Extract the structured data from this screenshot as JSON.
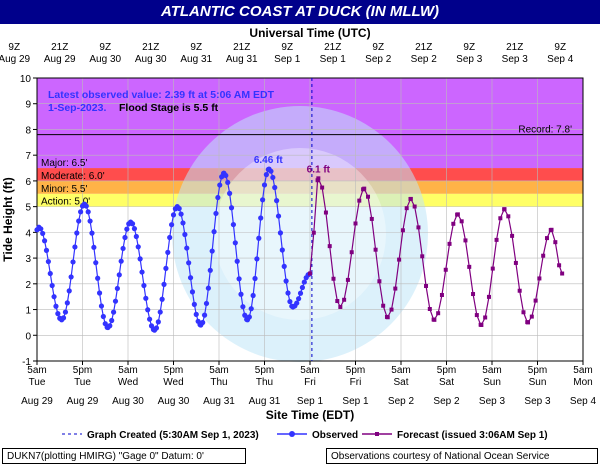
{
  "title": "ATLANTIC COAST AT DUCK (IN MLLW)",
  "footer": {
    "left": "DUKN7(plotting HMIRG) \"Gage 0\" Datum: 0'",
    "right": "Observations courtesy of National Ocean Service"
  },
  "colors": {
    "title_bg": "#00008b",
    "record_band": "#e680e6",
    "major_band": "#cc66ff",
    "moderate_band": "#ff4d4d",
    "minor_band": "#ffb347",
    "action_band": "#ffff66",
    "observed": "#3333ff",
    "forecast": "#800080"
  },
  "chart_data": {
    "type": "line",
    "top_axis_label": "Universal Time (UTC)",
    "top_ticks": [
      {
        "t": 0,
        "l1": "9Z",
        "l2": "Aug 29"
      },
      {
        "t": 12,
        "l1": "21Z",
        "l2": "Aug 29"
      },
      {
        "t": 24,
        "l1": "9Z",
        "l2": "Aug 30"
      },
      {
        "t": 36,
        "l1": "21Z",
        "l2": "Aug 30"
      },
      {
        "t": 48,
        "l1": "9Z",
        "l2": "Aug 31"
      },
      {
        "t": 60,
        "l1": "21Z",
        "l2": "Aug 31"
      },
      {
        "t": 72,
        "l1": "9Z",
        "l2": "Sep 1"
      },
      {
        "t": 84,
        "l1": "21Z",
        "l2": "Sep 1"
      },
      {
        "t": 96,
        "l1": "9Z",
        "l2": "Sep 2"
      },
      {
        "t": 108,
        "l1": "21Z",
        "l2": "Sep 2"
      },
      {
        "t": 120,
        "l1": "9Z",
        "l2": "Sep 3"
      },
      {
        "t": 132,
        "l1": "21Z",
        "l2": "Sep 3"
      },
      {
        "t": 144,
        "l1": "9Z",
        "l2": "Sep 4"
      }
    ],
    "bottom_axis_label": "Site Time (EDT)",
    "bottom_ticks": [
      {
        "t": 0,
        "l1": "5am",
        "l2": "Tue",
        "l3": "Aug 29"
      },
      {
        "t": 12,
        "l1": "5pm",
        "l2": "Tue",
        "l3": "Aug 29"
      },
      {
        "t": 24,
        "l1": "5am",
        "l2": "Wed",
        "l3": "Aug 30"
      },
      {
        "t": 36,
        "l1": "5pm",
        "l2": "Wed",
        "l3": "Aug 30"
      },
      {
        "t": 48,
        "l1": "5am",
        "l2": "Thu",
        "l3": "Aug 31"
      },
      {
        "t": 60,
        "l1": "5pm",
        "l2": "Thu",
        "l3": "Aug 31"
      },
      {
        "t": 72,
        "l1": "5am",
        "l2": "Fri",
        "l3": "Sep 1"
      },
      {
        "t": 84,
        "l1": "5pm",
        "l2": "Fri",
        "l3": "Sep 1"
      },
      {
        "t": 96,
        "l1": "5am",
        "l2": "Sat",
        "l3": "Sep 2"
      },
      {
        "t": 108,
        "l1": "5pm",
        "l2": "Sat",
        "l3": "Sep 2"
      },
      {
        "t": 120,
        "l1": "5am",
        "l2": "Sun",
        "l3": "Sep 3"
      },
      {
        "t": 132,
        "l1": "5pm",
        "l2": "Sun",
        "l3": "Sep 3"
      },
      {
        "t": 144,
        "l1": "5am",
        "l2": "Mon",
        "l3": "Sep 4"
      }
    ],
    "ylabel": "Tide Height (ft)",
    "ylim": [
      -1,
      10
    ],
    "yticks": [
      -1,
      0,
      1,
      2,
      3,
      4,
      5,
      6,
      7,
      8,
      9,
      10
    ],
    "grid": true,
    "thresholds": [
      {
        "name": "Action",
        "label": "Action: 5.0'",
        "from": 5.0,
        "to": 5.5
      },
      {
        "name": "Minor",
        "label": "Minor: 5.5'",
        "from": 5.5,
        "to": 6.0
      },
      {
        "name": "Moderate",
        "label": "Moderate: 6.0'",
        "from": 6.0,
        "to": 6.5
      },
      {
        "name": "Major",
        "label": "Major: 6.5'",
        "from": 6.5,
        "to": 10.0
      }
    ],
    "record": {
      "label": "Record: 7.8'",
      "value": 7.8
    },
    "info_box": {
      "line1": "Latest observed value: 2.39 ft at 5:06 AM EDT",
      "line2a": "1-Sep-2023.",
      "line2b": "Flood Stage is 5.5 ft"
    },
    "peak_labels": [
      {
        "text": "6.46 ft",
        "t": 61.0,
        "y": 6.46
      },
      {
        "text": "6.1 ft",
        "t": 74.2,
        "y": 6.1
      }
    ],
    "graph_created_t": 72.5,
    "legend": {
      "created": "Graph Created (5:30AM Sep 1, 2023)",
      "observed": "Observed",
      "forecast": "Forecast (issued 3:06AM Sep 1)"
    },
    "observed_extrema": [
      {
        "t": 0,
        "y": 4.1
      },
      {
        "t": 0.5,
        "y": 4.2
      },
      {
        "t": 6.5,
        "y": 0.6
      },
      {
        "t": 12.5,
        "y": 5.1
      },
      {
        "t": 18.7,
        "y": 0.3
      },
      {
        "t": 24.7,
        "y": 4.4
      },
      {
        "t": 31.0,
        "y": 0.2
      },
      {
        "t": 37.0,
        "y": 5.0
      },
      {
        "t": 43.2,
        "y": 0.4
      },
      {
        "t": 49.3,
        "y": 6.3
      },
      {
        "t": 55.5,
        "y": 0.6
      },
      {
        "t": 61.2,
        "y": 6.46
      },
      {
        "t": 67.5,
        "y": 1.1
      },
      {
        "t": 72.0,
        "y": 2.39
      }
    ],
    "forecast_extrema": [
      {
        "t": 72.0,
        "y": 2.4
      },
      {
        "t": 74.2,
        "y": 6.1
      },
      {
        "t": 80.0,
        "y": 1.1
      },
      {
        "t": 86.3,
        "y": 5.7
      },
      {
        "t": 92.5,
        "y": 0.7
      },
      {
        "t": 98.6,
        "y": 5.3
      },
      {
        "t": 104.8,
        "y": 0.6
      },
      {
        "t": 111.0,
        "y": 4.7
      },
      {
        "t": 117.2,
        "y": 0.4
      },
      {
        "t": 123.3,
        "y": 4.9
      },
      {
        "t": 129.5,
        "y": 0.5
      },
      {
        "t": 135.7,
        "y": 4.1
      },
      {
        "t": 138.5,
        "y": 2.4
      }
    ]
  }
}
